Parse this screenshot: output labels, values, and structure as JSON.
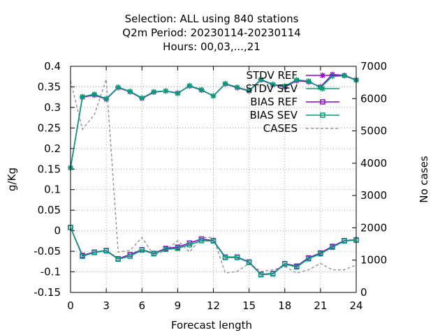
{
  "chart_data": {
    "type": "line",
    "title_lines": [
      "Selection: ALL using   840 stations",
      "Q2m   Period: 20230114-20230114",
      "Hours:  00,03,...,21"
    ],
    "xlabel": "Forecast length",
    "ylabel": "g/Kg",
    "y2label": "No cases",
    "xlim": [
      0,
      24
    ],
    "ylim": [
      -0.15,
      0.4
    ],
    "y2lim": [
      0,
      7000
    ],
    "x_ticks": [
      0,
      3,
      6,
      9,
      12,
      15,
      18,
      21,
      24
    ],
    "y_ticks": [
      "0.4",
      "0.35",
      "0.3",
      "0.25",
      "0.2",
      "0.15",
      "0.1",
      "0.05",
      "0",
      "-0.05",
      "-0.1",
      "-0.15"
    ],
    "y2_ticks": [
      "7000",
      "6000",
      "5000",
      "4000",
      "3000",
      "2000",
      "1000",
      "0"
    ],
    "grid": true,
    "legend_position": "top-right",
    "x": [
      0,
      1,
      2,
      3,
      4,
      5,
      6,
      7,
      8,
      9,
      10,
      11,
      12,
      13,
      14,
      15,
      16,
      17,
      18,
      19,
      20,
      21,
      22,
      23,
      24
    ],
    "series": [
      {
        "name": "STDV REF",
        "axis": "y",
        "color": "#9400d3",
        "marker": "star",
        "dash": false,
        "values": [
          0.153,
          0.325,
          0.33,
          0.32,
          0.348,
          0.338,
          0.322,
          0.337,
          0.34,
          0.335,
          0.352,
          0.342,
          0.328,
          0.357,
          0.348,
          0.34,
          0.367,
          0.355,
          0.35,
          0.365,
          0.362,
          0.35,
          0.38,
          0.378,
          0.367
        ]
      },
      {
        "name": "STDV SEV",
        "axis": "y",
        "color": "#009e73",
        "marker": "star",
        "dash": false,
        "values": [
          0.153,
          0.326,
          0.332,
          0.321,
          0.349,
          0.339,
          0.323,
          0.338,
          0.34,
          0.334,
          0.353,
          0.343,
          0.328,
          0.358,
          0.349,
          0.341,
          0.368,
          0.356,
          0.352,
          0.367,
          0.364,
          0.348,
          0.376,
          0.377,
          0.366
        ]
      },
      {
        "name": "BIAS REF",
        "axis": "y",
        "color": "#9400d3",
        "marker": "square",
        "dash": false,
        "values": [
          0.008,
          -0.06,
          -0.052,
          -0.048,
          -0.068,
          -0.058,
          -0.046,
          -0.055,
          -0.043,
          -0.04,
          -0.03,
          -0.02,
          -0.024,
          -0.064,
          -0.064,
          -0.076,
          -0.106,
          -0.104,
          -0.08,
          -0.086,
          -0.066,
          -0.054,
          -0.038,
          -0.024,
          -0.022
        ]
      },
      {
        "name": "BIAS SEV",
        "axis": "y",
        "color": "#009e73",
        "marker": "square",
        "dash": false,
        "values": [
          0.008,
          -0.062,
          -0.053,
          -0.049,
          -0.069,
          -0.062,
          -0.047,
          -0.056,
          -0.045,
          -0.043,
          -0.034,
          -0.024,
          -0.025,
          -0.065,
          -0.065,
          -0.077,
          -0.107,
          -0.105,
          -0.081,
          -0.088,
          -0.068,
          -0.056,
          -0.04,
          -0.025,
          -0.023
        ]
      },
      {
        "name": "CASES",
        "axis": "y2",
        "color": "#999999",
        "marker": "none",
        "dash": true,
        "values": [
          6550,
          5050,
          5500,
          6600,
          1250,
          1300,
          1700,
          1150,
          1300,
          1600,
          1250,
          1700,
          1700,
          600,
          650,
          900,
          650,
          700,
          800,
          600,
          700,
          900,
          700,
          700,
          850
        ]
      }
    ]
  }
}
